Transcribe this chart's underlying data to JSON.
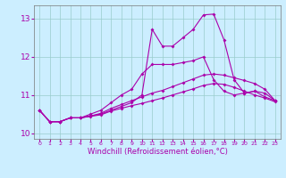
{
  "title": "",
  "xlabel": "Windchill (Refroidissement éolien,°C)",
  "bg_color": "#cceeff",
  "line_color": "#aa00aa",
  "grid_color": "#99cccc",
  "x_hours": [
    0,
    1,
    2,
    3,
    4,
    5,
    6,
    7,
    8,
    9,
    10,
    11,
    12,
    13,
    14,
    15,
    16,
    17,
    18,
    19,
    20,
    21,
    22,
    23
  ],
  "line_spike": [
    10.6,
    10.3,
    10.3,
    10.4,
    10.4,
    10.45,
    10.5,
    10.6,
    10.7,
    10.8,
    11.0,
    12.72,
    12.28,
    12.28,
    12.5,
    12.72,
    13.1,
    13.12,
    12.45,
    11.4,
    11.05,
    11.1,
    11.05,
    10.85
  ],
  "line_mid1": [
    10.6,
    10.3,
    10.3,
    10.4,
    10.4,
    10.5,
    10.6,
    10.8,
    11.0,
    11.15,
    11.55,
    11.8,
    11.8,
    11.8,
    11.85,
    11.9,
    12.0,
    11.4,
    11.1,
    11.0,
    11.05,
    11.1,
    10.95,
    10.85
  ],
  "line_low1": [
    10.6,
    10.3,
    10.3,
    10.4,
    10.4,
    10.45,
    10.52,
    10.65,
    10.75,
    10.85,
    10.95,
    11.05,
    11.12,
    11.22,
    11.32,
    11.42,
    11.52,
    11.55,
    11.52,
    11.45,
    11.38,
    11.3,
    11.15,
    10.85
  ],
  "line_low2": [
    10.6,
    10.3,
    10.3,
    10.4,
    10.4,
    10.44,
    10.48,
    10.58,
    10.65,
    10.72,
    10.78,
    10.85,
    10.92,
    11.0,
    11.08,
    11.16,
    11.25,
    11.3,
    11.28,
    11.2,
    11.1,
    11.0,
    10.92,
    10.82
  ],
  "ylim": [
    9.85,
    13.35
  ],
  "yticks": [
    10,
    11,
    12,
    13
  ],
  "xlim": [
    -0.5,
    23.5
  ]
}
